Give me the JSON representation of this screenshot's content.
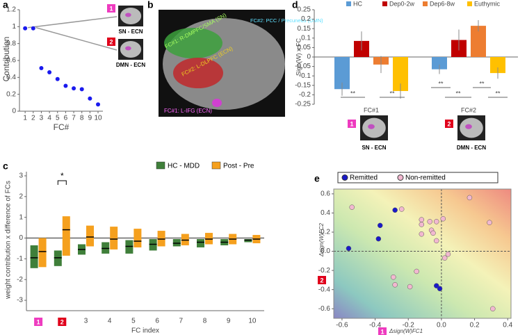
{
  "chart_data": [
    {
      "type": "scatter",
      "label": "a",
      "xlabel": "FC#",
      "ylabel": "Contribution",
      "color": "#1a1aee",
      "x": [
        1,
        2,
        3,
        4,
        5,
        6,
        7,
        8,
        9,
        10
      ],
      "values": [
        0.98,
        0.98,
        0.51,
        0.46,
        0.38,
        0.3,
        0.27,
        0.26,
        0.15,
        0.08
      ],
      "xlim": [
        0.3,
        10.6
      ],
      "xticks": [
        1,
        2,
        3,
        4,
        5,
        6,
        7,
        8,
        9,
        10
      ],
      "ylim": [
        0,
        1.2
      ],
      "yticks": [
        0,
        0.2,
        0.4,
        0.6,
        0.8,
        1,
        1.2
      ],
      "annotations": [
        {
          "badge": "1",
          "text": "SN - ECN",
          "color": "#ee3bbf"
        },
        {
          "badge": "2",
          "text": "DMN - ECN",
          "color": "#e0001b"
        }
      ]
    },
    {
      "type": "image",
      "label": "b",
      "annotations": [
        "FC#1: R-DMPFC/SMA (SN)",
        "FC#2: L-DLPFC (ECN)",
        "FC#2: PCC / Precuneus (DMN)",
        "FC#1: L-IFG (ECN)"
      ]
    },
    {
      "type": "bar",
      "label": "d",
      "ylabel": "Sign(W) x FC",
      "categories": [
        "FC#1",
        "FC#2"
      ],
      "series": [
        {
          "name": "HC",
          "color": "#5b9bd5",
          "values": [
            -0.17,
            -0.065
          ],
          "errors": [
            0.035,
            0.025
          ]
        },
        {
          "name": "Dep0-2w",
          "color": "#c00000",
          "values": [
            0.085,
            0.09
          ],
          "errors": [
            0.05,
            0.055
          ]
        },
        {
          "name": "Dep6-8w",
          "color": "#ed7d31",
          "values": [
            -0.04,
            0.165
          ],
          "errors": [
            0.045,
            0.03
          ]
        },
        {
          "name": "Euthymic",
          "color": "#ffc000",
          "values": [
            -0.18,
            -0.085
          ],
          "errors": [
            0.04,
            0.03
          ]
        }
      ],
      "ylim": [
        -0.25,
        0.25
      ],
      "yticks": [
        -0.25,
        -0.2,
        -0.15,
        -0.1,
        -0.05,
        0,
        0.05,
        0.1,
        0.15,
        0.2,
        0.25
      ],
      "significance": [
        "**",
        "**",
        "**",
        "**",
        "**",
        "**"
      ],
      "annotations": [
        {
          "badge": "1",
          "text": "SN - ECN",
          "color": "#ee3bbf"
        },
        {
          "badge": "2",
          "text": "DMN - ECN",
          "color": "#e0001b"
        }
      ]
    },
    {
      "type": "box",
      "label": "c",
      "xlabel": "FC index",
      "ylabel": "weight contribution x difference of FCs",
      "categories": [
        "1",
        "2",
        "3",
        "4",
        "5",
        "6",
        "7",
        "8",
        "9",
        "10"
      ],
      "series": [
        {
          "name": "HC - MDD",
          "color": "#3f7f3a",
          "q1": [
            -1.45,
            -1.35,
            -0.8,
            -0.75,
            -0.75,
            -0.6,
            -0.4,
            -0.45,
            -0.35,
            -0.2
          ],
          "median": [
            -0.95,
            -0.95,
            -0.55,
            -0.5,
            -0.4,
            -0.3,
            -0.25,
            -0.2,
            -0.2,
            -0.1
          ],
          "q3": [
            -0.35,
            -0.6,
            -0.3,
            -0.2,
            -0.1,
            -0.05,
            -0.05,
            -0.05,
            -0.05,
            -0.05
          ]
        },
        {
          "name": "Post - Pre",
          "color": "#f5a01e",
          "q1": [
            -1.4,
            -0.85,
            -0.4,
            -0.55,
            -0.45,
            -0.4,
            -0.35,
            -0.3,
            -0.3,
            -0.25
          ],
          "median": [
            -0.65,
            0.4,
            0.05,
            -0.05,
            -0.15,
            -0.05,
            -0.1,
            -0.05,
            -0.05,
            -0.05
          ],
          "q3": [
            0,
            1.05,
            0.6,
            0.55,
            0.45,
            0.35,
            0.2,
            0.25,
            0.2,
            0.15
          ]
        }
      ],
      "ylim": [
        -3.5,
        3.2
      ],
      "yticks": [
        -3,
        -2,
        -1,
        0,
        1,
        2,
        3
      ],
      "annotation": "*"
    },
    {
      "type": "scatter",
      "label": "e",
      "xlabel": "Δsign(W)FC1",
      "ylabel": "Δsign(W)FC2",
      "badges": [
        {
          "badge": "1",
          "color": "#ee3bbf"
        },
        {
          "badge": "2",
          "color": "#e0001b"
        }
      ],
      "series": [
        {
          "name": "Remitted",
          "color": "#1a1ac8",
          "x": [
            -0.56,
            -0.28,
            -0.37,
            -0.38,
            -0.03,
            -0.01
          ],
          "values": [
            0.03,
            0.43,
            0.27,
            0.13,
            -0.36,
            -0.39
          ]
        },
        {
          "name": "Non-remitted",
          "color": "#f2b8d0",
          "x": [
            -0.54,
            -0.24,
            -0.29,
            -0.28,
            -0.19,
            -0.15,
            -0.12,
            -0.12,
            -0.12,
            -0.07,
            -0.06,
            -0.05,
            -0.03,
            -0.03,
            0.01,
            0.02,
            0.04,
            0.17,
            0.29,
            0.31
          ],
          "values": [
            0.46,
            0.44,
            -0.27,
            -0.35,
            -0.37,
            -0.21,
            0.18,
            0.33,
            0.28,
            0.31,
            0.22,
            0.19,
            0.31,
            0.11,
            0.34,
            -0.07,
            -0.03,
            0.56,
            0.3,
            -0.6
          ]
        }
      ],
      "xlim": [
        -0.65,
        0.42
      ],
      "xticks": [
        -0.6,
        -0.4,
        -0.2,
        {
          "value": 0,
          "label": "0.0"
        },
        0.2,
        0.4
      ],
      "ylim": [
        -0.7,
        0.65
      ],
      "yticks": [
        -0.6,
        -0.4,
        -0.2,
        {
          "value": 0,
          "label": "0.0"
        },
        0.2,
        0.4,
        0.6
      ]
    }
  ]
}
